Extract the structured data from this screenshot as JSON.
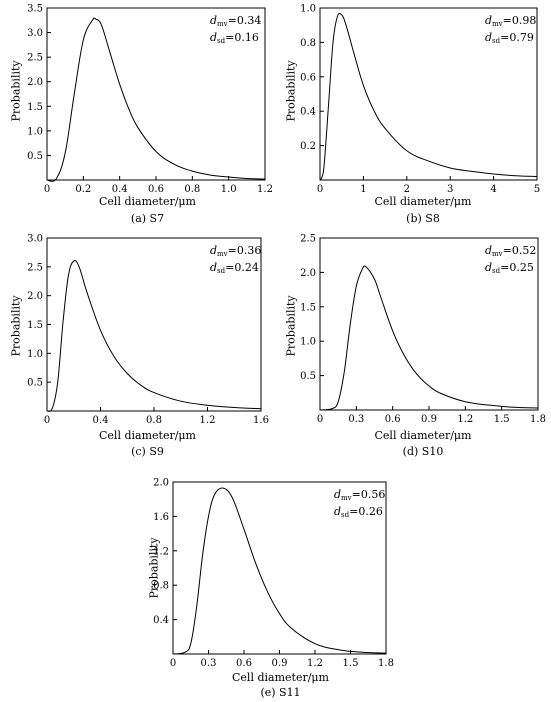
{
  "chart_data": [
    {
      "id": "s7",
      "type": "line",
      "caption": "(a) S7",
      "xlabel": "Cell diameter/μm",
      "ylabel": "Probability",
      "xlim": [
        0,
        1.2
      ],
      "ylim": [
        0,
        3.5
      ],
      "xticks": [
        0,
        0.2,
        0.4,
        0.6,
        0.8,
        1.0,
        1.2
      ],
      "xtick_labels": [
        "0",
        "0.2",
        "0.4",
        "0.6",
        "0.8",
        "1.0",
        "1.2"
      ],
      "yticks": [
        0.5,
        1.0,
        1.5,
        2.0,
        2.5,
        3.0,
        3.5
      ],
      "ytick_labels": [
        "0.5",
        "1.0",
        "1.5",
        "2.0",
        "2.5",
        "3.0",
        "3.5"
      ],
      "annotation": {
        "dmv_label": "mv",
        "dmv_value": "=0.34",
        "dsd_label": "sd",
        "dsd_value": "=0.16"
      },
      "x": [
        0,
        0.05,
        0.1,
        0.15,
        0.2,
        0.25,
        0.27,
        0.3,
        0.35,
        0.4,
        0.45,
        0.5,
        0.6,
        0.7,
        0.8,
        0.9,
        1.0,
        1.1,
        1.2
      ],
      "y": [
        0,
        0.02,
        0.55,
        1.75,
        2.85,
        3.25,
        3.27,
        3.15,
        2.55,
        1.95,
        1.45,
        1.07,
        0.58,
        0.32,
        0.18,
        0.1,
        0.06,
        0.03,
        0.02
      ]
    },
    {
      "id": "s8",
      "type": "line",
      "caption": "(b) S8",
      "xlabel": "Cell diameter/μm",
      "ylabel": "Probability",
      "xlim": [
        0,
        5
      ],
      "ylim": [
        0,
        1.0
      ],
      "xticks": [
        0,
        1,
        2,
        3,
        4,
        5
      ],
      "xtick_labels": [
        "0",
        "1",
        "2",
        "3",
        "4",
        "5"
      ],
      "yticks": [
        0.2,
        0.4,
        0.6,
        0.8,
        1.0
      ],
      "ytick_labels": [
        "0.2",
        "0.4",
        "0.6",
        "0.8",
        "1.0"
      ],
      "annotation": {
        "dmv_label": "mv",
        "dmv_value": "=0.98",
        "dsd_label": "sd",
        "dsd_value": "=0.79"
      },
      "x": [
        0,
        0.05,
        0.1,
        0.2,
        0.3,
        0.4,
        0.5,
        0.6,
        0.8,
        1.0,
        1.25,
        1.5,
        2.0,
        2.5,
        3.0,
        3.5,
        4.0,
        4.5,
        5.0
      ],
      "y": [
        0,
        0.02,
        0.1,
        0.45,
        0.8,
        0.95,
        0.96,
        0.9,
        0.72,
        0.55,
        0.4,
        0.3,
        0.17,
        0.11,
        0.07,
        0.05,
        0.035,
        0.025,
        0.02
      ]
    },
    {
      "id": "s9",
      "type": "line",
      "caption": "(c) S9",
      "xlabel": "Cell diameter/μm",
      "ylabel": "Probability",
      "xlim": [
        0,
        1.6
      ],
      "ylim": [
        0,
        3.0
      ],
      "xticks": [
        0,
        0.4,
        0.8,
        1.2,
        1.6
      ],
      "xtick_labels": [
        "0",
        "0.4",
        "0.8",
        "1.2",
        "1.6"
      ],
      "yticks": [
        0.5,
        1.0,
        1.5,
        2.0,
        2.5,
        3.0
      ],
      "ytick_labels": [
        "0.5",
        "1.0",
        "1.5",
        "2.0",
        "2.5",
        "3.0"
      ],
      "annotation": {
        "dmv_label": "mv",
        "dmv_value": "=0.36",
        "dsd_label": "sd",
        "dsd_value": "=0.24"
      },
      "x": [
        0,
        0.04,
        0.08,
        0.12,
        0.16,
        0.2,
        0.24,
        0.3,
        0.4,
        0.5,
        0.6,
        0.7,
        0.8,
        1.0,
        1.2,
        1.4,
        1.6
      ],
      "y": [
        0,
        0.05,
        0.5,
        1.55,
        2.35,
        2.6,
        2.5,
        2.05,
        1.4,
        0.95,
        0.65,
        0.45,
        0.32,
        0.17,
        0.1,
        0.06,
        0.04
      ]
    },
    {
      "id": "s10",
      "type": "line",
      "caption": "(d) S10",
      "xlabel": "Cell diameter/μm",
      "ylabel": "Probability",
      "xlim": [
        0,
        1.8
      ],
      "ylim": [
        0,
        2.5
      ],
      "xticks": [
        0,
        0.3,
        0.6,
        0.9,
        1.2,
        1.5,
        1.8
      ],
      "xtick_labels": [
        "0",
        "0.3",
        "0.6",
        "0.9",
        "1.2",
        "1.5",
        "1.8"
      ],
      "yticks": [
        0.5,
        1.0,
        1.5,
        2.0,
        2.5
      ],
      "ytick_labels": [
        "0.5",
        "1.0",
        "1.5",
        "2.0",
        "2.5"
      ],
      "annotation": {
        "dmv_label": "mv",
        "dmv_value": "=0.52",
        "dsd_label": "sd",
        "dsd_value": "=0.25"
      },
      "x": [
        0,
        0.1,
        0.15,
        0.2,
        0.25,
        0.3,
        0.35,
        0.38,
        0.45,
        0.5,
        0.6,
        0.7,
        0.8,
        0.9,
        1.0,
        1.2,
        1.4,
        1.6,
        1.8
      ],
      "y": [
        0,
        0.02,
        0.12,
        0.55,
        1.25,
        1.8,
        2.05,
        2.08,
        1.9,
        1.65,
        1.15,
        0.78,
        0.52,
        0.35,
        0.24,
        0.12,
        0.07,
        0.04,
        0.03
      ]
    },
    {
      "id": "s11",
      "type": "line",
      "caption": "(e) S11",
      "xlabel": "Cell diameter/μm",
      "ylabel": "Probability",
      "xlim": [
        0,
        1.8
      ],
      "ylim": [
        0,
        2.0
      ],
      "xticks": [
        0,
        0.3,
        0.6,
        0.9,
        1.2,
        1.5,
        1.8
      ],
      "xtick_labels": [
        "0",
        "0.3",
        "0.6",
        "0.9",
        "1.2",
        "1.5",
        "1.8"
      ],
      "yticks": [
        0.4,
        0.8,
        1.2,
        1.6,
        2.0
      ],
      "ytick_labels": [
        "0.4",
        "0.8",
        "1.2",
        "1.6",
        "2.0"
      ],
      "annotation": {
        "dmv_label": "mv",
        "dmv_value": "=0.56",
        "dsd_label": "sd",
        "dsd_value": "=0.26"
      },
      "x": [
        0,
        0.1,
        0.15,
        0.2,
        0.25,
        0.3,
        0.35,
        0.42,
        0.5,
        0.6,
        0.7,
        0.8,
        0.9,
        1.0,
        1.2,
        1.4,
        1.6,
        1.8
      ],
      "y": [
        0,
        0.02,
        0.12,
        0.55,
        1.15,
        1.6,
        1.85,
        1.93,
        1.82,
        1.45,
        1.05,
        0.72,
        0.47,
        0.3,
        0.12,
        0.05,
        0.02,
        0.01
      ]
    }
  ]
}
